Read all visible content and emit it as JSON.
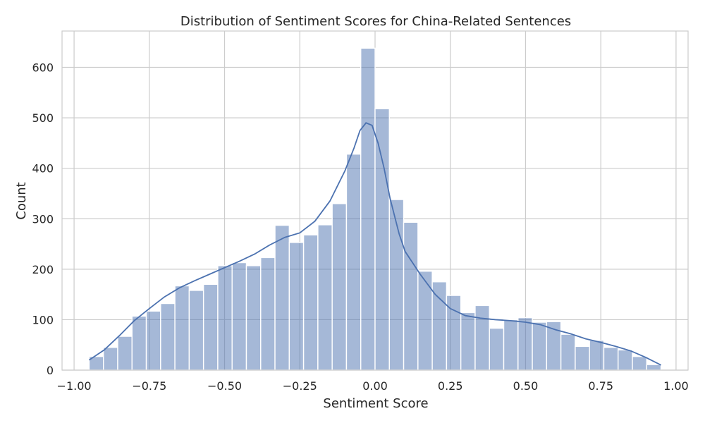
{
  "chart_data": {
    "type": "histogram",
    "title": "Distribution of Sentiment Scores for China-Related Sentences",
    "xlabel": "Sentiment Score",
    "ylabel": "Count",
    "xlim": [
      -1.04,
      1.04
    ],
    "ylim": [
      0,
      672
    ],
    "x_ticks": [
      -1.0,
      -0.75,
      -0.5,
      -0.25,
      0.0,
      0.25,
      0.5,
      0.75,
      1.0
    ],
    "x_tick_labels": [
      "−1.00",
      "−0.75",
      "−0.50",
      "−0.25",
      "0.00",
      "0.25",
      "0.50",
      "0.75",
      "1.00"
    ],
    "y_ticks": [
      0,
      100,
      200,
      300,
      400,
      500,
      600
    ],
    "y_tick_labels": [
      "0",
      "100",
      "200",
      "300",
      "400",
      "500",
      "600"
    ],
    "grid": true,
    "bins": {
      "start": -0.95,
      "width": 0.0475,
      "counts": [
        27,
        45,
        67,
        107,
        117,
        132,
        167,
        158,
        170,
        207,
        213,
        207,
        223,
        287,
        253,
        268,
        288,
        330,
        428,
        638,
        518,
        338,
        293,
        196,
        175,
        148,
        114,
        128,
        83,
        100,
        104,
        95,
        96,
        71,
        47,
        59,
        45,
        40,
        27,
        11
      ]
    },
    "kde": {
      "x": [
        -0.95,
        -0.9,
        -0.85,
        -0.8,
        -0.75,
        -0.7,
        -0.65,
        -0.6,
        -0.55,
        -0.5,
        -0.45,
        -0.4,
        -0.35,
        -0.3,
        -0.25,
        -0.2,
        -0.15,
        -0.1,
        -0.07,
        -0.05,
        -0.03,
        -0.01,
        0.01,
        0.03,
        0.05,
        0.08,
        0.1,
        0.15,
        0.2,
        0.25,
        0.3,
        0.35,
        0.4,
        0.45,
        0.5,
        0.55,
        0.6,
        0.65,
        0.7,
        0.75,
        0.8,
        0.85,
        0.9,
        0.95
      ],
      "y": [
        20,
        40,
        68,
        98,
        122,
        145,
        163,
        177,
        190,
        203,
        216,
        230,
        248,
        263,
        272,
        295,
        335,
        395,
        440,
        475,
        490,
        485,
        450,
        400,
        340,
        270,
        235,
        190,
        150,
        122,
        108,
        103,
        100,
        98,
        95,
        90,
        80,
        72,
        62,
        55,
        47,
        38,
        25,
        10
      ]
    }
  }
}
